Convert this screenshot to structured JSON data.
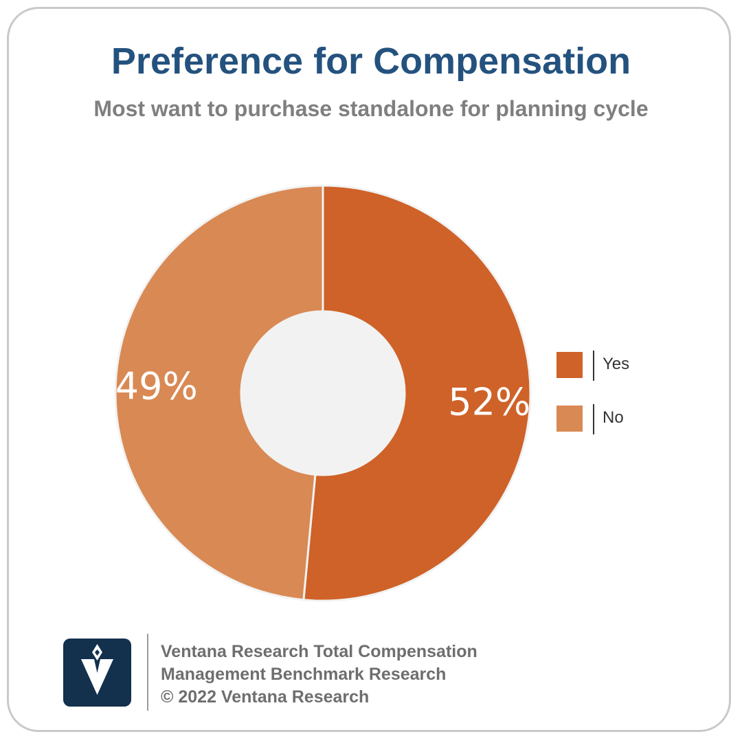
{
  "title": "Preference for Compensation",
  "subtitle": "Most want to purchase standalone for planning cycle",
  "colors": {
    "title": "#24527f",
    "subtitle": "#7f7f7f",
    "yes": "#cf6228",
    "no": "#d98953",
    "hole": "#f2f2f2",
    "logo_bg": "#13304d"
  },
  "chart_data": {
    "type": "pie",
    "variant": "donut",
    "categories": [
      "Yes",
      "No"
    ],
    "values": [
      52,
      49
    ],
    "data_labels": [
      "52%",
      "49%"
    ],
    "legend_position": "right"
  },
  "legend": {
    "items": [
      {
        "label": "Yes",
        "color": "#cf6228"
      },
      {
        "label": "No",
        "color": "#d98953"
      }
    ]
  },
  "footer": {
    "logo_icon": "ventana-v-logo-icon",
    "line1": "Ventana Research Total Compensation",
    "line2": "Management Benchmark Research",
    "line3": "© 2022 Ventana Research"
  }
}
